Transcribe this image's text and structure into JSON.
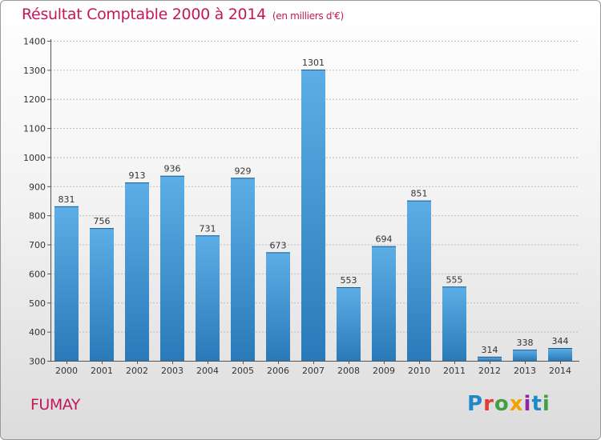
{
  "header": {
    "title": "Résultat Comptable 2000 à 2014",
    "subtitle": "(en milliers d'€)"
  },
  "footer": {
    "commune": "FUMAY",
    "brand": "Proxiti",
    "brand_colors": [
      "#1e88c8",
      "#e53935",
      "#43a047",
      "#f4a100",
      "#8e24aa",
      "#1e88c8",
      "#43a047"
    ]
  },
  "colors": {
    "bar_top": "#5dade6",
    "bar_bottom": "#2a7ab9",
    "axis": "#555555",
    "grid": "#bdbdbd",
    "title": "#c2185b"
  },
  "chart_data": {
    "type": "bar",
    "title": "Résultat Comptable 2000 à 2014",
    "xlabel": "",
    "ylabel": "",
    "ylim": [
      300,
      1400
    ],
    "yticks": [
      300,
      400,
      500,
      600,
      700,
      800,
      900,
      1000,
      1100,
      1200,
      1300,
      1400
    ],
    "grid": true,
    "categories": [
      "2000",
      "2001",
      "2002",
      "2003",
      "2004",
      "2005",
      "2006",
      "2007",
      "2008",
      "2009",
      "2010",
      "2011",
      "2012",
      "2013",
      "2014"
    ],
    "values": [
      831,
      756,
      913,
      936,
      731,
      929,
      673,
      1301,
      553,
      694,
      851,
      555,
      314,
      338,
      344
    ]
  }
}
